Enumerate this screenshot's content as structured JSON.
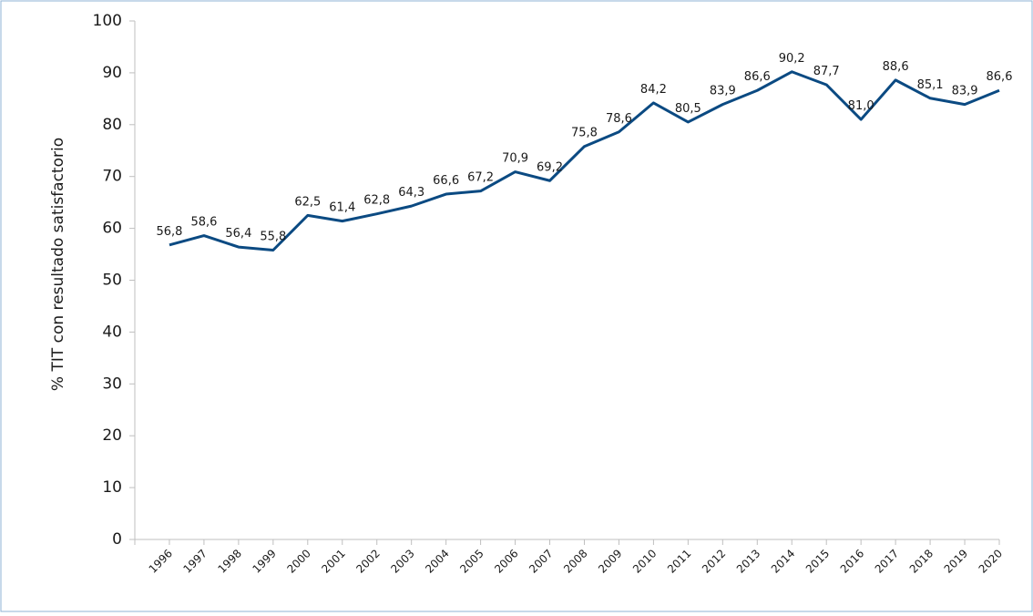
{
  "chart_data": {
    "type": "line",
    "y_label": "% TIT con resultado satisfactorio",
    "categories": [
      "1996",
      "1997",
      "1998",
      "1999",
      "2000",
      "2001",
      "2002",
      "2003",
      "2004",
      "2005",
      "2006",
      "2007",
      "2008",
      "2009",
      "2010",
      "2011",
      "2012",
      "2013",
      "2014",
      "2015",
      "2016",
      "2017",
      "2018",
      "2019",
      "2020"
    ],
    "series": [
      {
        "color": "#0b4a82",
        "values": [
          56.8,
          58.6,
          56.4,
          55.8,
          62.5,
          61.4,
          62.8,
          64.3,
          66.6,
          67.2,
          70.9,
          69.2,
          75.8,
          78.6,
          84.2,
          80.5,
          83.9,
          86.6,
          90.2,
          87.7,
          81.0,
          88.6,
          85.1,
          83.9,
          86.6
        ],
        "value_labels": [
          "56,8",
          "58,6",
          "56,4",
          "55,8",
          "62,5",
          "61,4",
          "62,8",
          "64,3",
          "66,6",
          "67,2",
          "70,9",
          "69,2",
          "75,8",
          "78,6",
          "84,2",
          "80,5",
          "83,9",
          "86,6",
          "90,2",
          "87,7",
          "81,0",
          "88,6",
          "85,1",
          "83,9",
          "86,6"
        ]
      }
    ],
    "ylim": [
      0,
      100
    ],
    "yticks": [
      0,
      10,
      20,
      30,
      40,
      50,
      60,
      70,
      80,
      90,
      100
    ],
    "grid": false
  }
}
